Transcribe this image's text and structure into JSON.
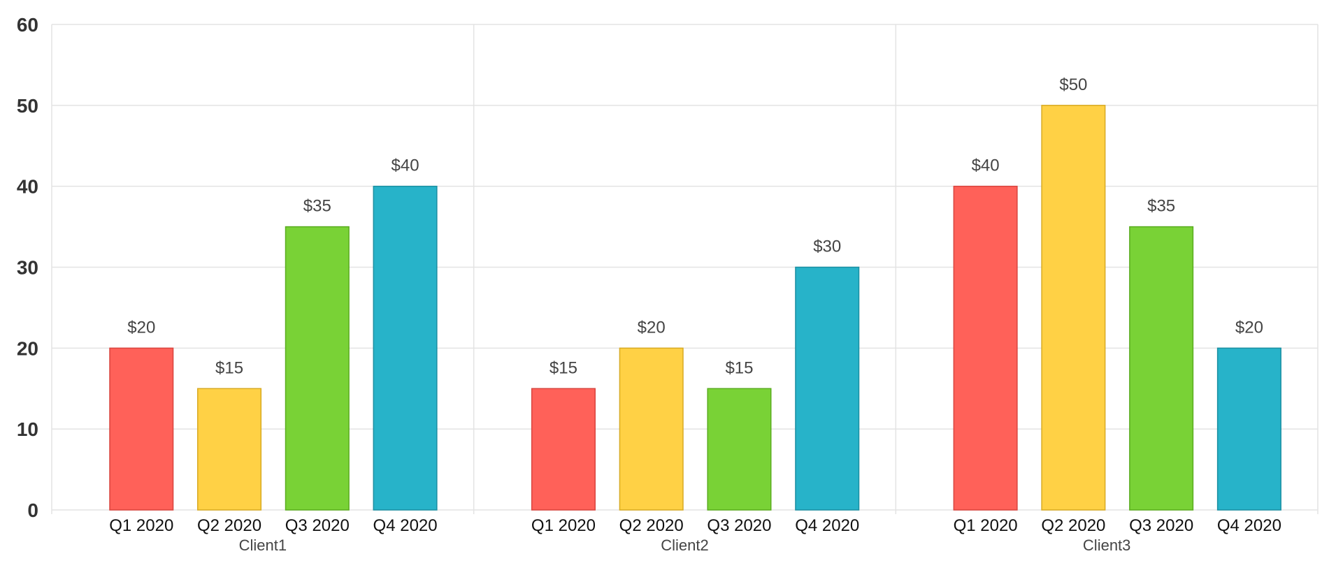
{
  "chart_data": {
    "type": "bar",
    "groups": [
      "Client1",
      "Client2",
      "Client3"
    ],
    "categories": [
      "Q1 2020",
      "Q2 2020",
      "Q3 2020",
      "Q4 2020"
    ],
    "series_colors": [
      "#ff6159",
      "#ffd145",
      "#79d236",
      "#27b3c9"
    ],
    "series_border_colors": [
      "#d9443e",
      "#d8aa22",
      "#5aac1f",
      "#1a8fa2"
    ],
    "values": [
      [
        20,
        15,
        35,
        40
      ],
      [
        15,
        20,
        15,
        30
      ],
      [
        40,
        50,
        35,
        20
      ]
    ],
    "data_labels": [
      [
        "$20",
        "$15",
        "$35",
        "$40"
      ],
      [
        "$15",
        "$20",
        "$15",
        "$30"
      ],
      [
        "$40",
        "$50",
        "$35",
        "$20"
      ]
    ],
    "ylim": [
      0,
      60
    ],
    "yticks": [
      0,
      10,
      20,
      30,
      40,
      50,
      60
    ],
    "grid": true,
    "legend": false
  }
}
